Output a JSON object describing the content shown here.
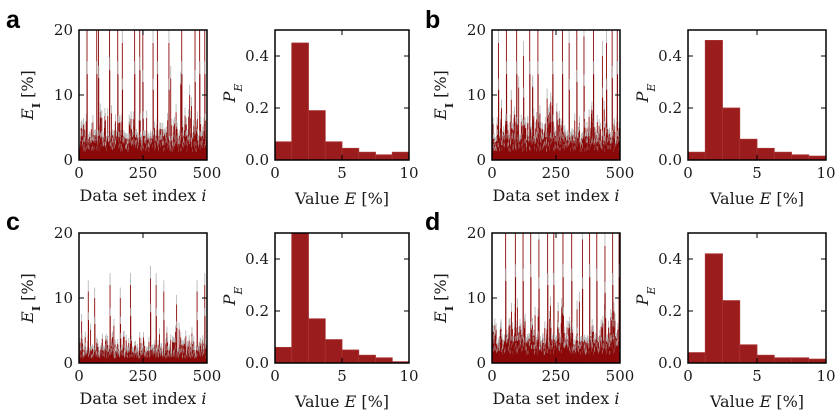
{
  "panels": [
    {
      "letter": "a",
      "series_chart": {
        "type": "bar",
        "ylabel": "E_I [%]",
        "xlabel_text": "Data set index ",
        "xlabel_var": "i",
        "xlim": [
          0,
          500
        ],
        "ylim": [
          0,
          20
        ],
        "xticks": [
          0,
          250,
          500
        ],
        "yticks": [
          0,
          10,
          20
        ],
        "seed": 11,
        "scale": 1.0,
        "spikes": [
          [
            30,
            22
          ],
          [
            68,
            22
          ],
          [
            75,
            21
          ],
          [
            118,
            23
          ],
          [
            150,
            22
          ],
          [
            168,
            18
          ],
          [
            216,
            22
          ],
          [
            236,
            23
          ],
          [
            248,
            20
          ],
          [
            288,
            18
          ],
          [
            305,
            22
          ],
          [
            350,
            18
          ],
          [
            400,
            22
          ],
          [
            452,
            20
          ],
          [
            470,
            22
          ],
          [
            490,
            22
          ]
        ]
      },
      "hist_chart": {
        "type": "histogram",
        "ylabel": "P_E",
        "xlabel_text": "Value ",
        "xlabel_var": "E",
        "xlabel_unit": " [%]",
        "xlim": [
          0,
          10
        ],
        "ylim": [
          0,
          0.5
        ],
        "xticks": [
          0,
          5,
          10
        ],
        "yticks": [
          0.0,
          0.2,
          0.4
        ],
        "ytick_labels": [
          "0.0",
          "0.2",
          "0.4"
        ],
        "bin_width": 1.25,
        "values": [
          0.07,
          0.45,
          0.19,
          0.07,
          0.045,
          0.03,
          0.02,
          0.03
        ]
      }
    },
    {
      "letter": "b",
      "series_chart": {
        "type": "bar",
        "ylabel": "E_I [%]",
        "xlabel_text": "Data set index ",
        "xlabel_var": "i",
        "xlim": [
          0,
          500
        ],
        "ylim": [
          0,
          20
        ],
        "xticks": [
          0,
          250,
          500
        ],
        "yticks": [
          0,
          10,
          20
        ],
        "seed": 23,
        "scale": 1.0,
        "spikes": [
          [
            24,
            18
          ],
          [
            55,
            22
          ],
          [
            95,
            22
          ],
          [
            122,
            16
          ],
          [
            146,
            22
          ],
          [
            178,
            22
          ],
          [
            236,
            22
          ],
          [
            274,
            22
          ],
          [
            300,
            18
          ],
          [
            330,
            20
          ],
          [
            358,
            19
          ],
          [
            395,
            22
          ],
          [
            430,
            16
          ],
          [
            446,
            18
          ],
          [
            468,
            21
          ],
          [
            488,
            22
          ]
        ]
      },
      "hist_chart": {
        "type": "histogram",
        "ylabel": "P_E",
        "xlabel_text": "Value ",
        "xlabel_var": "E",
        "xlabel_unit": " [%]",
        "xlim": [
          0,
          10
        ],
        "ylim": [
          0,
          0.5
        ],
        "xticks": [
          0,
          5,
          10
        ],
        "yticks": [
          0.0,
          0.2,
          0.4
        ],
        "ytick_labels": [
          "0.0",
          "0.2",
          "0.4"
        ],
        "bin_width": 1.25,
        "values": [
          0.03,
          0.46,
          0.2,
          0.08,
          0.045,
          0.03,
          0.02,
          0.015
        ]
      }
    },
    {
      "letter": "c",
      "series_chart": {
        "type": "bar",
        "ylabel": "E_I [%]",
        "xlabel_text": "Data set index ",
        "xlabel_var": "i",
        "xlim": [
          0,
          500
        ],
        "ylim": [
          0,
          20
        ],
        "xticks": [
          0,
          250,
          500
        ],
        "yticks": [
          0,
          10,
          20
        ],
        "seed": 37,
        "scale": 0.55,
        "spikes": [
          [
            35,
            11
          ],
          [
            60,
            10
          ],
          [
            120,
            12
          ],
          [
            160,
            10
          ],
          [
            200,
            12
          ],
          [
            278,
            13
          ],
          [
            300,
            12
          ],
          [
            330,
            11
          ],
          [
            380,
            9
          ],
          [
            460,
            11
          ],
          [
            490,
            12
          ]
        ]
      },
      "hist_chart": {
        "type": "histogram",
        "ylabel": "P_E",
        "xlabel_text": "Value ",
        "xlabel_var": "E",
        "xlabel_unit": " [%]",
        "xlim": [
          0,
          10
        ],
        "ylim": [
          0,
          0.5
        ],
        "xticks": [
          0,
          5,
          10
        ],
        "yticks": [
          0.0,
          0.2,
          0.4
        ],
        "ytick_labels": [
          "0.0",
          "0.2",
          "0.4"
        ],
        "bin_width": 1.25,
        "values": [
          0.06,
          0.52,
          0.17,
          0.09,
          0.05,
          0.03,
          0.02,
          0.005
        ]
      }
    },
    {
      "letter": "d",
      "series_chart": {
        "type": "bar",
        "ylabel": "E_I [%]",
        "xlabel_text": "Data set index ",
        "xlabel_var": "i",
        "xlim": [
          0,
          500
        ],
        "ylim": [
          0,
          20
        ],
        "xticks": [
          0,
          250,
          500
        ],
        "yticks": [
          0,
          10,
          20
        ],
        "seed": 53,
        "scale": 1.0,
        "spikes": [
          [
            52,
            21
          ],
          [
            90,
            22
          ],
          [
            120,
            21
          ],
          [
            150,
            22
          ],
          [
            182,
            19
          ],
          [
            216,
            20
          ],
          [
            240,
            20
          ],
          [
            276,
            22
          ],
          [
            310,
            21
          ],
          [
            352,
            19
          ],
          [
            380,
            22
          ],
          [
            408,
            21
          ],
          [
            440,
            18
          ],
          [
            470,
            20
          ],
          [
            495,
            22
          ]
        ]
      },
      "hist_chart": {
        "type": "histogram",
        "ylabel": "P_E",
        "xlabel_text": "Value ",
        "xlabel_var": "E",
        "xlabel_unit": " [%]",
        "xlim": [
          0,
          10
        ],
        "ylim": [
          0,
          0.5
        ],
        "xticks": [
          0,
          5,
          10
        ],
        "yticks": [
          0.0,
          0.2,
          0.4
        ],
        "ytick_labels": [
          "0.0",
          "0.2",
          "0.4"
        ],
        "bin_width": 1.25,
        "values": [
          0.04,
          0.42,
          0.24,
          0.07,
          0.03,
          0.02,
          0.02,
          0.015
        ]
      }
    }
  ],
  "colors": {
    "bar_fill": "#8b0a0a",
    "bar_error": "#b9b9b9",
    "hist_fill": "#9b1c1c",
    "hist_edge": "#a73232"
  }
}
